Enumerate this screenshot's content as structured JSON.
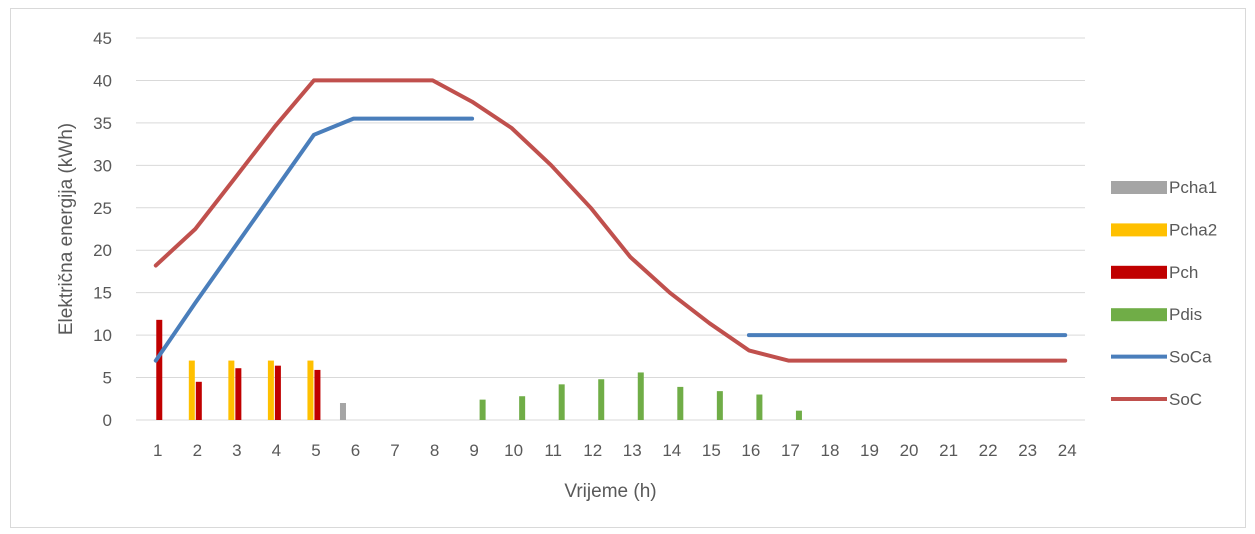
{
  "chart_data": {
    "type": "bar",
    "xlabel": "Vrijeme (h)",
    "ylabel": "Električna energija (kWh)",
    "ylim": [
      0,
      45
    ],
    "yticks": [
      0,
      5,
      10,
      15,
      20,
      25,
      30,
      35,
      40,
      45
    ],
    "grid": true,
    "legend": "right",
    "categories": [
      "1",
      "2",
      "3",
      "4",
      "5",
      "6",
      "7",
      "8",
      "9",
      "10",
      "11",
      "12",
      "13",
      "14",
      "15",
      "16",
      "17",
      "18",
      "19",
      "20",
      "21",
      "22",
      "23",
      "24"
    ],
    "bar_series": [
      {
        "name": "Pcha1",
        "color": "#a5a5a5",
        "values": [
          0,
          0,
          0,
          0,
          0,
          2,
          0,
          0,
          0,
          0,
          0,
          0,
          0,
          0,
          0,
          0,
          0,
          0,
          0,
          0,
          0,
          0,
          0,
          0
        ]
      },
      {
        "name": "Pcha2",
        "color": "#ffc000",
        "values": [
          0,
          7,
          7,
          7,
          7,
          0,
          0,
          0,
          0,
          0,
          0,
          0,
          0,
          0,
          0,
          0,
          0,
          0,
          0,
          0,
          0,
          0,
          0,
          0
        ]
      },
      {
        "name": "Pch",
        "color": "#c00000",
        "values": [
          11.8,
          4.5,
          6.1,
          6.4,
          5.9,
          0,
          0,
          0,
          0,
          0,
          0,
          0,
          0,
          0,
          0,
          0,
          0,
          0,
          0,
          0,
          0,
          0,
          0,
          0
        ]
      },
      {
        "name": "Pdis",
        "color": "#70ad47",
        "values": [
          0,
          0,
          0,
          0,
          0,
          0,
          0,
          0,
          2.4,
          2.8,
          4.2,
          4.8,
          5.6,
          3.9,
          3.4,
          3.0,
          1.1,
          0,
          0,
          0,
          0,
          0,
          0,
          0
        ]
      }
    ],
    "line_series": [
      {
        "name": "SoCa",
        "color": "#4a7ebb",
        "values": [
          7.0,
          13.8,
          20.4,
          27.0,
          33.6,
          35.5,
          35.5,
          35.5,
          35.5,
          null,
          null,
          null,
          null,
          null,
          null,
          10.0,
          10.0,
          10.0,
          10.0,
          10.0,
          10.0,
          10.0,
          10.0,
          10.0
        ]
      },
      {
        "name": "SoC",
        "color": "#c0504d",
        "values": [
          18.2,
          22.5,
          28.5,
          34.5,
          40.0,
          40.0,
          40.0,
          40.0,
          37.5,
          34.4,
          30.0,
          25.0,
          19.2,
          15.0,
          11.4,
          8.2,
          7.0,
          7.0,
          7.0,
          7.0,
          7.0,
          7.0,
          7.0,
          7.0
        ]
      }
    ]
  }
}
